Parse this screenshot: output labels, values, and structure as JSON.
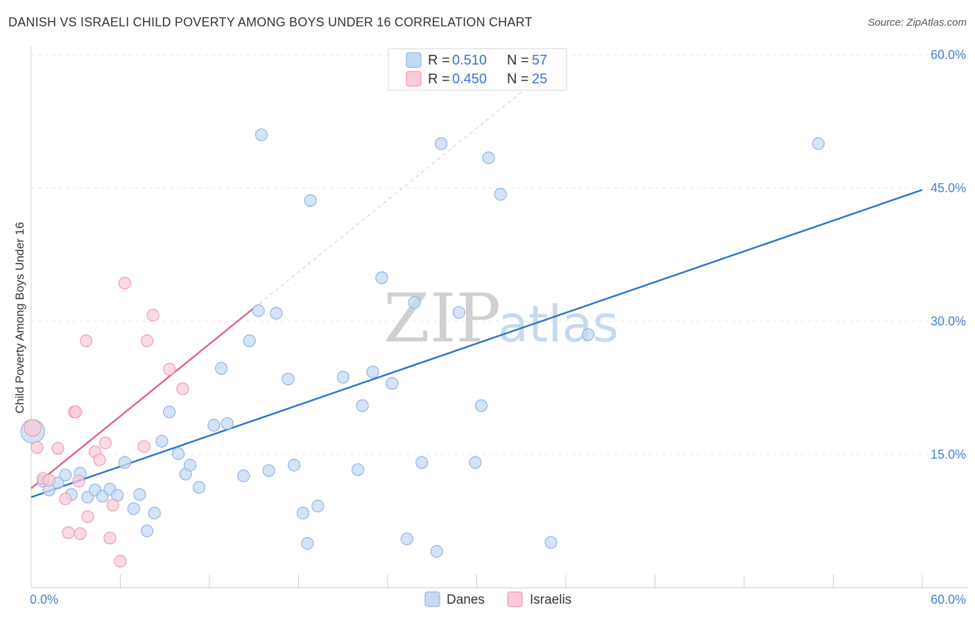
{
  "title": "DANISH VS ISRAELI CHILD POVERTY AMONG BOYS UNDER 16 CORRELATION CHART",
  "source": "Source: ZipAtlas.com",
  "watermark": {
    "zip": "ZIP",
    "atlas": "atlas"
  },
  "colors": {
    "danes_fill": "#c5d9f3",
    "danes_stroke": "#8fb4e6",
    "danes_line": "#2f74d0",
    "israelis_fill": "#f9cad8",
    "israelis_stroke": "#f09ab5",
    "israelis_line": "#e0648c",
    "grid": "#e3e3e3",
    "axis_text": "#4a7fd4"
  },
  "legend": {
    "rows": [
      {
        "r_label": "R =",
        "r_value": "0.510",
        "n_label": "N =",
        "n_value": "57"
      },
      {
        "r_label": "R =",
        "r_value": "0.450",
        "n_label": "N =",
        "n_value": "25"
      }
    ]
  },
  "bottom_legend": {
    "danes": "Danes",
    "israelis": "Israelis"
  },
  "chart_data": {
    "type": "scatter",
    "title": "DANISH VS ISRAELI CHILD POVERTY AMONG BOYS UNDER 16 CORRELATION CHART",
    "xlabel": "",
    "ylabel": "Child Poverty Among Boys Under 16",
    "xlim": [
      0,
      60
    ],
    "ylim": [
      0,
      60
    ],
    "x_ticks": [
      {
        "value": 0,
        "label": "0.0%"
      },
      {
        "value": 60,
        "label": "60.0%"
      }
    ],
    "y_ticks": [
      {
        "value": 15,
        "label": "15.0%"
      },
      {
        "value": 30,
        "label": "30.0%"
      },
      {
        "value": 45,
        "label": "45.0%"
      },
      {
        "value": 60,
        "label": "60.0%"
      }
    ],
    "series": [
      {
        "name": "Danes",
        "r": 0.51,
        "n": 57,
        "trend": {
          "x": [
            0,
            60
          ],
          "y": [
            10.2,
            44.8
          ]
        },
        "points": [
          [
            0.1,
            17.6
          ],
          [
            0.8,
            12.0
          ],
          [
            1.2,
            11.0
          ],
          [
            1.8,
            11.8
          ],
          [
            2.3,
            12.7
          ],
          [
            2.7,
            10.5
          ],
          [
            3.3,
            12.9
          ],
          [
            3.8,
            10.2
          ],
          [
            4.3,
            11.0
          ],
          [
            4.8,
            10.3
          ],
          [
            5.3,
            11.1
          ],
          [
            5.8,
            10.4
          ],
          [
            6.3,
            14.1
          ],
          [
            6.9,
            8.9
          ],
          [
            7.3,
            10.5
          ],
          [
            7.8,
            6.4
          ],
          [
            8.3,
            8.4
          ],
          [
            8.8,
            16.5
          ],
          [
            9.3,
            19.8
          ],
          [
            9.9,
            15.1
          ],
          [
            10.4,
            12.8
          ],
          [
            10.7,
            13.8
          ],
          [
            11.3,
            11.3
          ],
          [
            12.3,
            18.3
          ],
          [
            12.8,
            24.7
          ],
          [
            13.2,
            18.5
          ],
          [
            14.3,
            12.6
          ],
          [
            14.7,
            27.8
          ],
          [
            15.3,
            31.2
          ],
          [
            15.5,
            51.0
          ],
          [
            16.0,
            13.2
          ],
          [
            16.5,
            30.9
          ],
          [
            17.3,
            23.5
          ],
          [
            17.7,
            13.8
          ],
          [
            18.3,
            8.4
          ],
          [
            18.6,
            5.0
          ],
          [
            18.8,
            43.6
          ],
          [
            19.3,
            9.2
          ],
          [
            21.0,
            23.7
          ],
          [
            22.0,
            13.3
          ],
          [
            22.3,
            20.5
          ],
          [
            23.0,
            24.3
          ],
          [
            23.6,
            34.9
          ],
          [
            24.3,
            23.0
          ],
          [
            25.3,
            5.5
          ],
          [
            25.8,
            32.1
          ],
          [
            26.3,
            14.1
          ],
          [
            27.3,
            4.1
          ],
          [
            27.6,
            50.0
          ],
          [
            28.8,
            31.0
          ],
          [
            29.9,
            14.1
          ],
          [
            30.3,
            20.5
          ],
          [
            30.8,
            48.4
          ],
          [
            31.6,
            44.3
          ],
          [
            35.0,
            5.1
          ],
          [
            37.5,
            28.5
          ],
          [
            53.0,
            50.0
          ]
        ]
      },
      {
        "name": "Israelis",
        "r": 0.45,
        "n": 25,
        "trend": {
          "x": [
            0,
            15.0
          ],
          "y": [
            11.2,
            31.5
          ]
        },
        "trend_extension": {
          "x": [
            15.0,
            35.0
          ],
          "y": [
            31.5,
            58.5
          ]
        },
        "points": [
          [
            0.1,
            18.0
          ],
          [
            0.4,
            15.8
          ],
          [
            0.8,
            12.3
          ],
          [
            1.2,
            12.1
          ],
          [
            1.8,
            15.7
          ],
          [
            2.3,
            10.0
          ],
          [
            2.5,
            6.2
          ],
          [
            2.9,
            19.8
          ],
          [
            3.2,
            12.0
          ],
          [
            3.3,
            6.1
          ],
          [
            3.7,
            27.8
          ],
          [
            3.8,
            8.0
          ],
          [
            4.3,
            15.3
          ],
          [
            4.6,
            14.4
          ],
          [
            5.0,
            16.3
          ],
          [
            5.3,
            5.6
          ],
          [
            5.5,
            9.3
          ],
          [
            6.0,
            3.0
          ],
          [
            6.3,
            34.3
          ],
          [
            7.6,
            15.9
          ],
          [
            7.8,
            27.8
          ],
          [
            8.2,
            30.7
          ],
          [
            9.3,
            24.6
          ],
          [
            10.2,
            22.4
          ],
          [
            3.0,
            19.8
          ]
        ]
      }
    ]
  }
}
